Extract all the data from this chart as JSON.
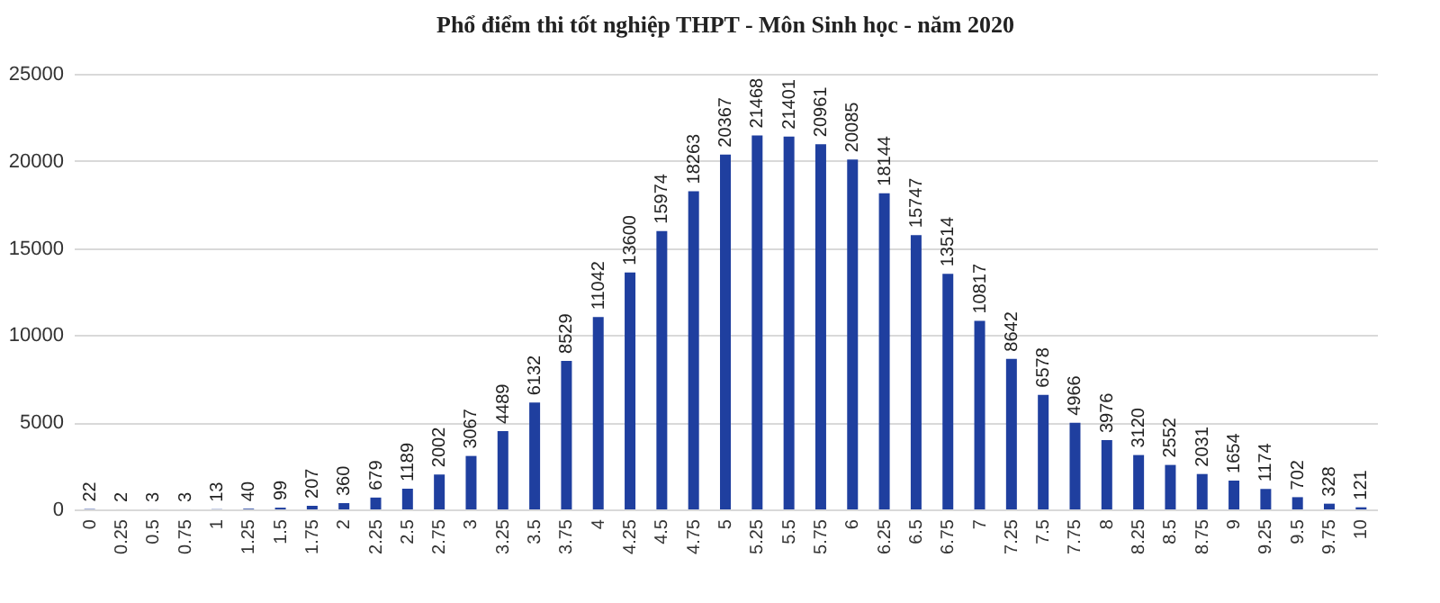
{
  "chart_data": {
    "type": "bar",
    "title": "Phổ điểm thi tốt nghiệp THPT - Môn Sinh học - năm 2020",
    "categories": [
      "0",
      "0.25",
      "0.5",
      "0.75",
      "1",
      "1.25",
      "1.5",
      "1.75",
      "2",
      "2.25",
      "2.5",
      "2.75",
      "3",
      "3.25",
      "3.5",
      "3.75",
      "4",
      "4.25",
      "4.5",
      "4.75",
      "5",
      "5.25",
      "5.5",
      "5.75",
      "6",
      "6.25",
      "6.5",
      "6.75",
      "7",
      "7.25",
      "7.5",
      "7.75",
      "8",
      "8.25",
      "8.5",
      "8.75",
      "9",
      "9.25",
      "9.5",
      "9.75",
      "10"
    ],
    "values": [
      22,
      2,
      3,
      3,
      13,
      40,
      99,
      207,
      360,
      679,
      1189,
      2002,
      3067,
      4489,
      6132,
      8529,
      11042,
      13600,
      15974,
      18263,
      20367,
      21468,
      21401,
      20961,
      20085,
      18144,
      15747,
      13514,
      10817,
      8642,
      6578,
      4966,
      3976,
      3120,
      2552,
      2031,
      1654,
      1174,
      702,
      328,
      121
    ],
    "color": "#1f3f9f",
    "ylim": [
      0,
      25000
    ],
    "yticks": [
      0,
      5000,
      10000,
      15000,
      20000,
      25000
    ],
    "grid": "y",
    "data_labels": true
  }
}
